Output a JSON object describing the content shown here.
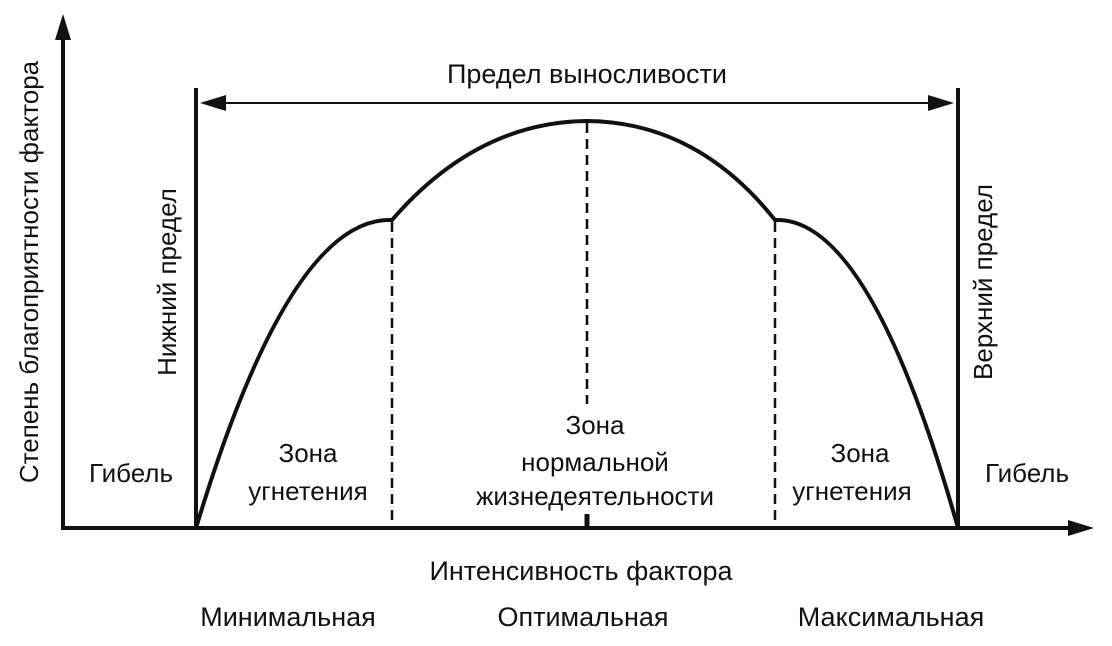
{
  "colors": {
    "ink": "#111111",
    "background": "#ffffff"
  },
  "y_axis_label": "Степень благоприятности фактора",
  "x_axis_label": "Интенсивность фактора",
  "tolerance_range_label": "Предел выносливости",
  "lower_limit_label": "Нижний предел",
  "upper_limit_label": "Верхний предел",
  "death_left_label": "Гибель",
  "death_right_label": "Гибель",
  "zones": {
    "left_oppression": [
      "Зона",
      "угнетения"
    ],
    "normal": [
      "Зона",
      "нормальной",
      "жизнедеятельности"
    ],
    "right_oppression": [
      "Зона",
      "угнетения"
    ]
  },
  "intensity_levels": [
    "Минимальная",
    "Оптимальная",
    "Максимальная"
  ]
}
